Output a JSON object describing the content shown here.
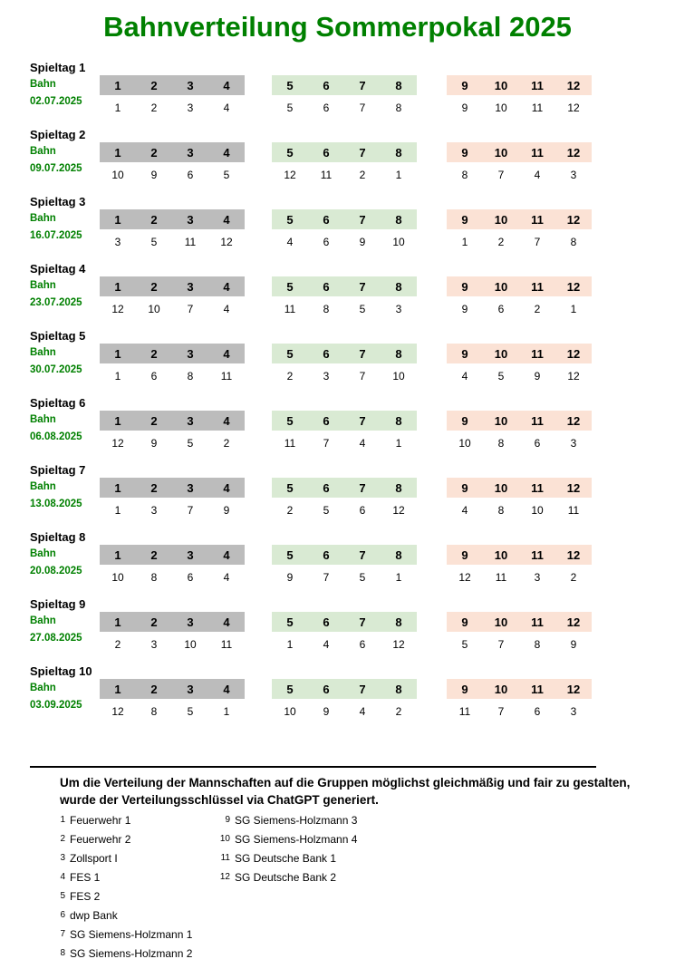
{
  "title": "Bahnverteilung Sommerpokal 2025",
  "bahn_label": "Bahn",
  "colors": {
    "title_green": "#008000",
    "band_gray": "#bcbcbc",
    "band_green": "#d9ead3",
    "band_orange": "#fbe2d5"
  },
  "lane_headers": [
    [
      1,
      2,
      3,
      4
    ],
    [
      5,
      6,
      7,
      8
    ],
    [
      9,
      10,
      11,
      12
    ]
  ],
  "matchdays": [
    {
      "label": "Spieltag 1",
      "date": "02.07.2025",
      "groups": [
        [
          1,
          2,
          3,
          4
        ],
        [
          5,
          6,
          7,
          8
        ],
        [
          9,
          10,
          11,
          12
        ]
      ]
    },
    {
      "label": "Spieltag 2",
      "date": "09.07.2025",
      "groups": [
        [
          10,
          9,
          6,
          5
        ],
        [
          12,
          11,
          2,
          1
        ],
        [
          8,
          7,
          4,
          3
        ]
      ]
    },
    {
      "label": "Spieltag 3",
      "date": "16.07.2025",
      "groups": [
        [
          3,
          5,
          11,
          12
        ],
        [
          4,
          6,
          9,
          10
        ],
        [
          1,
          2,
          7,
          8
        ]
      ]
    },
    {
      "label": "Spieltag 4",
      "date": "23.07.2025",
      "groups": [
        [
          12,
          10,
          7,
          4
        ],
        [
          11,
          8,
          5,
          3
        ],
        [
          9,
          6,
          2,
          1
        ]
      ]
    },
    {
      "label": "Spieltag 5",
      "date": "30.07.2025",
      "groups": [
        [
          1,
          6,
          8,
          11
        ],
        [
          2,
          3,
          7,
          10
        ],
        [
          4,
          5,
          9,
          12
        ]
      ]
    },
    {
      "label": "Spieltag 6",
      "date": "06.08.2025",
      "groups": [
        [
          12,
          9,
          5,
          2
        ],
        [
          11,
          7,
          4,
          1
        ],
        [
          10,
          8,
          6,
          3
        ]
      ]
    },
    {
      "label": "Spieltag 7",
      "date": "13.08.2025",
      "groups": [
        [
          1,
          3,
          7,
          9
        ],
        [
          2,
          5,
          6,
          12
        ],
        [
          4,
          8,
          10,
          11
        ]
      ]
    },
    {
      "label": "Spieltag 8",
      "date": "20.08.2025",
      "groups": [
        [
          10,
          8,
          6,
          4
        ],
        [
          9,
          7,
          5,
          1
        ],
        [
          12,
          11,
          3,
          2
        ]
      ]
    },
    {
      "label": "Spieltag 9",
      "date": "27.08.2025",
      "groups": [
        [
          2,
          3,
          10,
          11
        ],
        [
          1,
          4,
          6,
          12
        ],
        [
          5,
          7,
          8,
          9
        ]
      ]
    },
    {
      "label": "Spieltag 10",
      "date": "03.09.2025",
      "groups": [
        [
          12,
          8,
          5,
          1
        ],
        [
          10,
          9,
          4,
          2
        ],
        [
          11,
          7,
          6,
          3
        ]
      ]
    }
  ],
  "note": {
    "line1": "Um die Verteilung der Mannschaften auf die Gruppen möglichst gleichmäßig und fair zu gestalten,",
    "line2": "wurde der Verteilungsschlüssel via ChatGPT generiert."
  },
  "legend": {
    "column1": [
      {
        "num": "1",
        "name": "Feuerwehr 1"
      },
      {
        "num": "2",
        "name": "Feuerwehr 2"
      },
      {
        "num": "3",
        "name": "Zollsport I"
      },
      {
        "num": "4",
        "name": "FES 1"
      },
      {
        "num": "5",
        "name": "FES 2"
      },
      {
        "num": "6",
        "name": "dwp Bank"
      },
      {
        "num": "7",
        "name": "SG Siemens-Holzmann 1"
      },
      {
        "num": "8",
        "name": "SG Siemens-Holzmann 2"
      }
    ],
    "column2": [
      {
        "num": "9",
        "name": "SG Siemens-Holzmann 3"
      },
      {
        "num": "10",
        "name": "SG Siemens-Holzmann 4"
      },
      {
        "num": "11",
        "name": "SG Deutsche Bank 1"
      },
      {
        "num": "12",
        "name": "SG Deutsche Bank 2"
      }
    ]
  }
}
